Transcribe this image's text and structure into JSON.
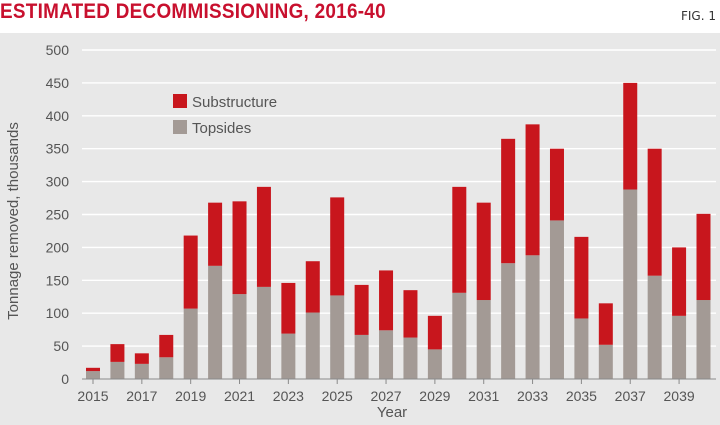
{
  "header": {
    "title": "ESTIMATED DECOMMISSIONING, 2016-40",
    "fig_label": "FIG. 1"
  },
  "colors": {
    "substructure": "#c8161d",
    "topsides": "#a39a95",
    "background": "#e8e8e8",
    "gridline": "#ffffff",
    "title": "#c8102e"
  },
  "chart_data": {
    "type": "bar",
    "stacked": true,
    "title": "ESTIMATED DECOMMISSIONING, 2016-40",
    "xlabel": "Year",
    "ylabel": "Tonnage removed, thousands",
    "ylim": [
      0,
      500
    ],
    "yticks": [
      0,
      50,
      100,
      150,
      200,
      250,
      300,
      350,
      400,
      450,
      500
    ],
    "xtick_labels": [
      "2015",
      "2017",
      "2019",
      "2021",
      "2023",
      "2025",
      "2027",
      "2029",
      "2031",
      "2033",
      "2035",
      "2037",
      "2039"
    ],
    "legend_position": "top-left",
    "categories": [
      "2015",
      "2016",
      "2017",
      "2018",
      "2019",
      "2020",
      "2021",
      "2022",
      "2023",
      "2024",
      "2025",
      "2026",
      "2027",
      "2028",
      "2029",
      "2030",
      "2031",
      "2032",
      "2033",
      "2034",
      "2035",
      "2036",
      "2037",
      "2038",
      "2039",
      "2040"
    ],
    "series": [
      {
        "name": "Topsides",
        "values": [
          12,
          26,
          23,
          33,
          107,
          172,
          129,
          140,
          69,
          101,
          127,
          67,
          74,
          63,
          45,
          131,
          120,
          176,
          188,
          241,
          92,
          52,
          288,
          157,
          96,
          120
        ]
      },
      {
        "name": "Substructure",
        "values": [
          5,
          27,
          16,
          34,
          111,
          96,
          141,
          152,
          77,
          78,
          149,
          76,
          91,
          72,
          51,
          161,
          148,
          189,
          199,
          109,
          124,
          63,
          162,
          193,
          104,
          131
        ]
      }
    ]
  }
}
